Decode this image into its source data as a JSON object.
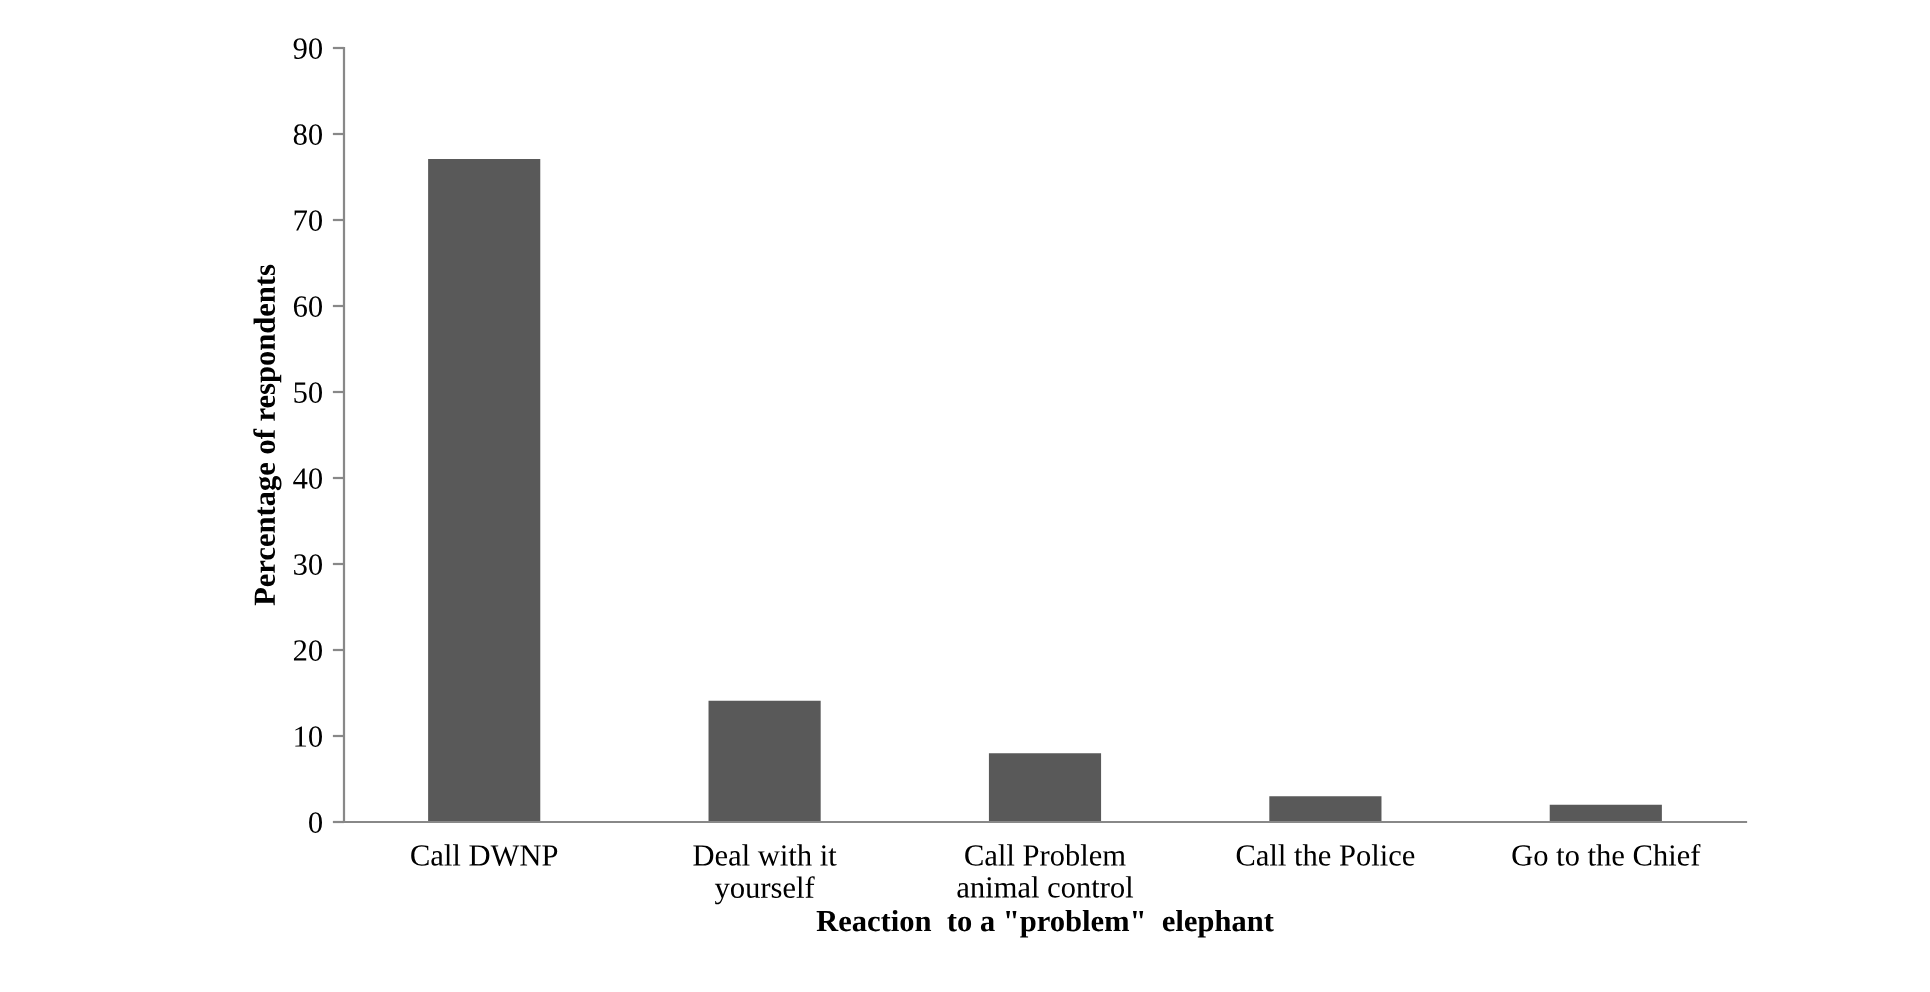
{
  "chart_data": {
    "type": "bar",
    "xlabel": "Reaction  to a \"problem\"  elephant",
    "ylabel": "Percentage of respondents",
    "categories": [
      "Call DWNP",
      "Deal with it\nyourself",
      "Call Problem\nanimal control",
      "Call the Police",
      "Go to the Chief"
    ],
    "values": [
      77.1,
      14.1,
      8.0,
      3.0,
      2.0
    ],
    "color": "#595959",
    "ylim": [
      0,
      90
    ],
    "yticks": [
      0,
      10,
      20,
      30,
      40,
      50,
      60,
      70,
      80,
      90
    ],
    "grid": false,
    "legend": false
  }
}
